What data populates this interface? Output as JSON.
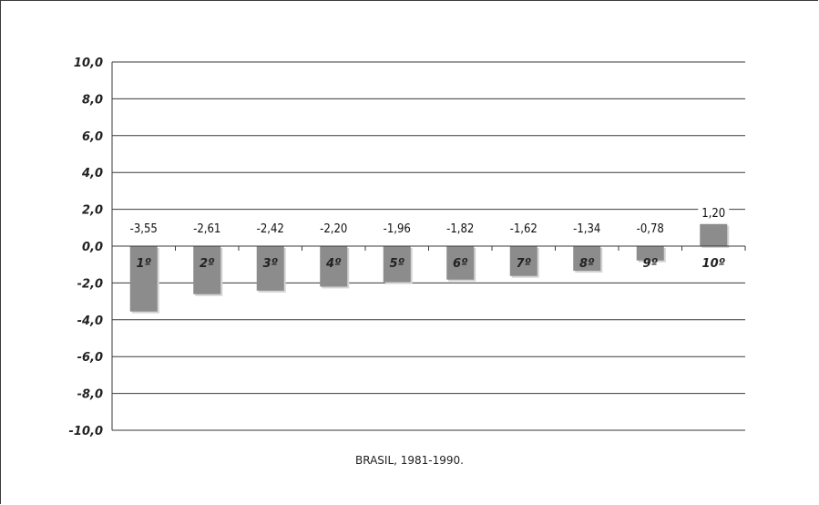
{
  "chart_data": {
    "type": "bar",
    "title": "",
    "xlabel": "BRASIL, 1981-1990.",
    "ylabel": "",
    "ylim": [
      -10,
      10
    ],
    "y_ticks": [
      "10,0",
      "8,0",
      "6,0",
      "4,0",
      "2,0",
      "0,0",
      "-2,0",
      "-4,0",
      "-6,0",
      "-8,0",
      "-10,0"
    ],
    "y_tick_values": [
      10,
      8,
      6,
      4,
      2,
      0,
      -2,
      -4,
      -6,
      -8,
      -10
    ],
    "categories": [
      "1º",
      "2º",
      "3º",
      "4º",
      "5º",
      "6º",
      "7º",
      "8º",
      "9º",
      "10º"
    ],
    "values": [
      -3.55,
      -2.61,
      -2.42,
      -2.2,
      -1.96,
      -1.82,
      -1.62,
      -1.34,
      -0.78,
      1.2
    ],
    "data_labels": [
      "-3,55",
      "-2,61",
      "-2,42",
      "-2,20",
      "-1,96",
      "-1,82",
      "-1,62",
      "-1,34",
      "-0,78",
      "1,20"
    ],
    "grid": true,
    "bar_color": "#8c8c8c",
    "bar_shadow_color": "#d4d4d4",
    "grid_color": "#3a3a3a"
  }
}
